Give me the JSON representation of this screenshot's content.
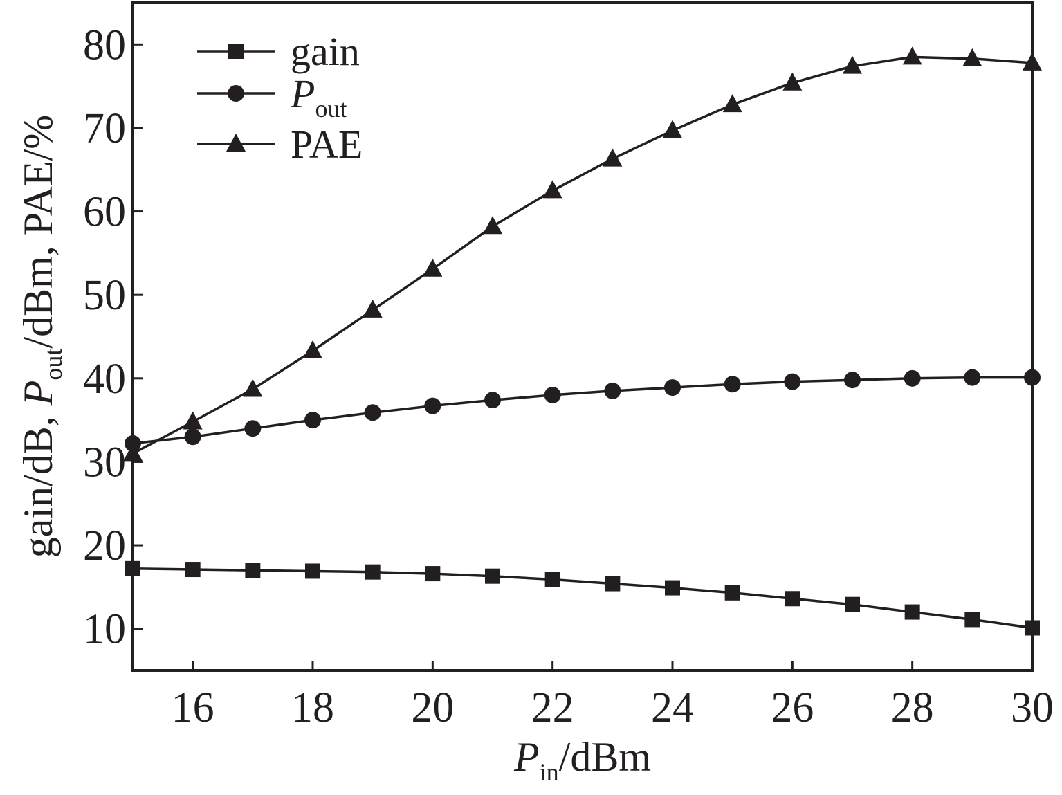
{
  "chart_data": {
    "type": "line",
    "xlabel": {
      "main": "P",
      "sub": "in",
      "rest": "/dBm"
    },
    "ylabel": {
      "pre": "gain/dB, ",
      "main": "P",
      "sub": "out",
      "rest": "/dBm, PAE/%"
    },
    "xlim": [
      15,
      30
    ],
    "ylim": [
      5,
      85
    ],
    "xticks": [
      16,
      18,
      20,
      22,
      24,
      26,
      28,
      30
    ],
    "yticks": [
      10,
      20,
      30,
      40,
      50,
      60,
      70,
      80
    ],
    "legend_position": "top-left",
    "x": [
      15,
      16,
      17,
      18,
      19,
      20,
      21,
      22,
      23,
      24,
      25,
      26,
      27,
      28,
      29,
      30
    ],
    "series": [
      {
        "name": "gain",
        "marker": "square",
        "values": [
          17.2,
          17.1,
          17.0,
          16.9,
          16.8,
          16.6,
          16.3,
          15.9,
          15.4,
          14.9,
          14.3,
          13.6,
          12.9,
          12.0,
          11.1,
          10.1
        ]
      },
      {
        "name": "P",
        "name_sub": "out",
        "marker": "circle",
        "values": [
          32.2,
          33.0,
          34.0,
          35.0,
          35.9,
          36.7,
          37.4,
          38.0,
          38.5,
          38.9,
          39.3,
          39.6,
          39.8,
          40.0,
          40.1,
          40.1
        ]
      },
      {
        "name": "PAE",
        "marker": "triangle",
        "values": [
          31.0,
          34.8,
          38.7,
          43.3,
          48.2,
          53.1,
          58.2,
          62.5,
          66.3,
          69.7,
          72.8,
          75.4,
          77.4,
          78.5,
          78.3,
          77.8
        ]
      }
    ],
    "colors": {
      "line": "#231f20",
      "background": "#ffffff"
    }
  }
}
